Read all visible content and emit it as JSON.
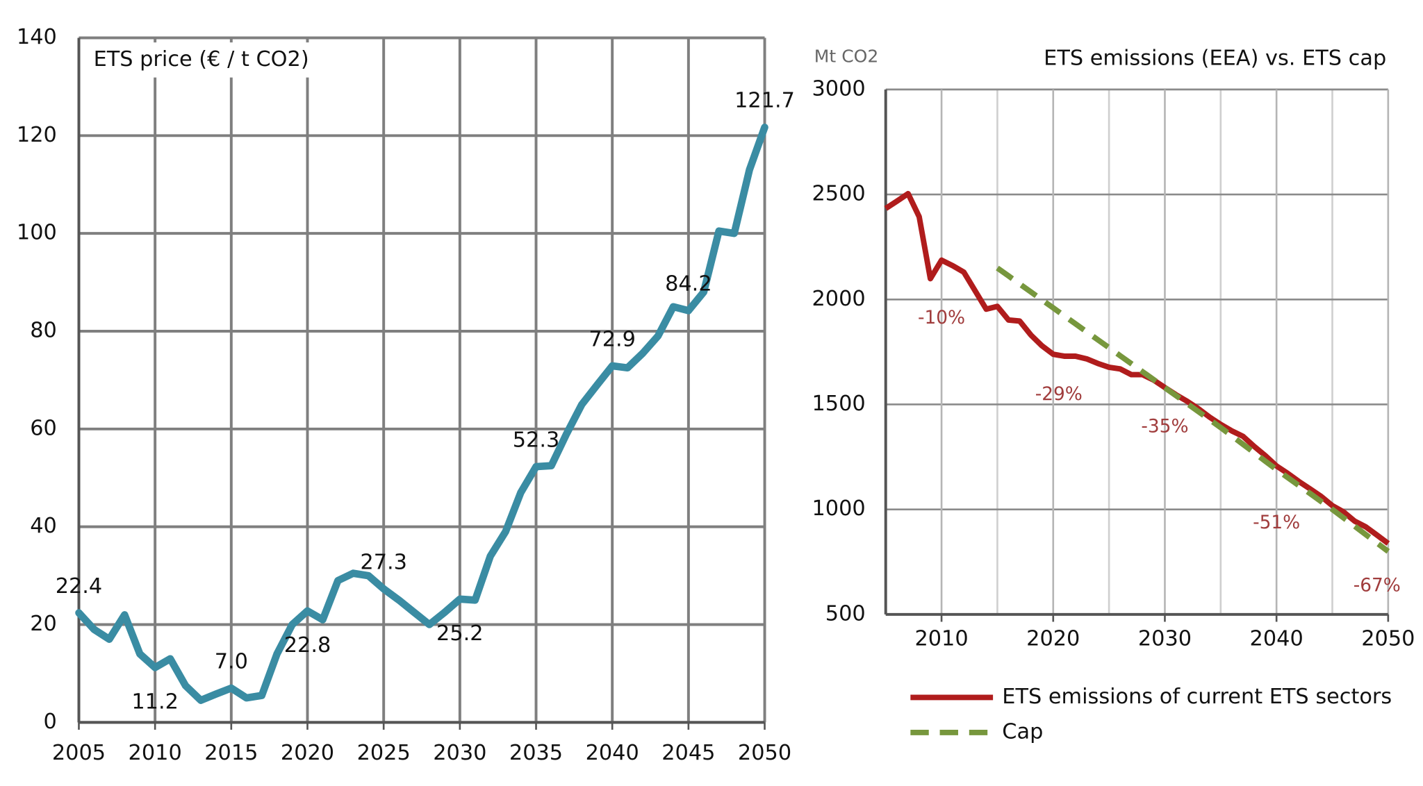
{
  "chart_data": [
    {
      "type": "line",
      "title": "ETS price (€ / t CO2)",
      "x": [
        2005,
        2006,
        2007,
        2008,
        2009,
        2010,
        2011,
        2012,
        2013,
        2014,
        2015,
        2016,
        2017,
        2018,
        2019,
        2020,
        2021,
        2022,
        2023,
        2024,
        2025,
        2026,
        2027,
        2028,
        2029,
        2030,
        2031,
        2032,
        2033,
        2034,
        2035,
        2036,
        2037,
        2038,
        2039,
        2040,
        2041,
        2042,
        2043,
        2044,
        2045,
        2046,
        2047,
        2048,
        2049,
        2050
      ],
      "values": [
        22.4,
        19,
        17,
        22,
        14,
        11.2,
        13,
        7.5,
        4.5,
        5.8,
        7.0,
        5,
        5.5,
        14,
        20,
        22.8,
        21,
        29,
        30.5,
        30,
        27.3,
        25,
        22.5,
        20,
        22.5,
        25.2,
        25,
        34,
        39,
        47,
        52.3,
        52.5,
        59,
        65,
        69,
        72.9,
        72.5,
        75.5,
        79,
        85,
        84.2,
        88,
        100.5,
        100,
        113,
        121.7
      ],
      "value_labels": [
        "22.4",
        null,
        null,
        null,
        null,
        "11.2",
        null,
        null,
        null,
        null,
        "7.0",
        null,
        null,
        null,
        null,
        "22.8",
        null,
        null,
        null,
        null,
        "27.3",
        null,
        null,
        null,
        null,
        "25.2",
        null,
        null,
        null,
        null,
        "52.3",
        null,
        null,
        null,
        null,
        "72.9",
        null,
        null,
        null,
        null,
        "84.2",
        null,
        null,
        null,
        null,
        "121.7"
      ],
      "color": "#3a8ca3",
      "xlim": [
        2005,
        2050
      ],
      "xticks": [
        2005,
        2010,
        2015,
        2020,
        2025,
        2030,
        2035,
        2040,
        2045,
        2050
      ],
      "ylim": [
        0,
        140
      ],
      "yticks": [
        0,
        20,
        40,
        60,
        80,
        100,
        120,
        140
      ],
      "grid": true
    },
    {
      "type": "line",
      "title": "ETS emissions (EEA) vs. ETS cap",
      "y_unit_label": "Mt CO2",
      "x": [
        2005,
        2006,
        2007,
        2008,
        2009,
        2010,
        2011,
        2012,
        2013,
        2014,
        2015,
        2016,
        2017,
        2018,
        2019,
        2020,
        2021,
        2022,
        2023,
        2024,
        2025,
        2026,
        2027,
        2028,
        2029,
        2030,
        2031,
        2032,
        2033,
        2034,
        2035,
        2036,
        2037,
        2038,
        2039,
        2040,
        2041,
        2042,
        2043,
        2044,
        2045,
        2046,
        2047,
        2048,
        2049,
        2050
      ],
      "series": [
        {
          "name": "ETS emissions of current ETS sectors",
          "color": "#b01c1c",
          "style": "solid",
          "values": [
            2433,
            2468,
            2504,
            2394,
            2099,
            2187,
            2161,
            2130,
            2042,
            1954,
            1967,
            1902,
            1897,
            1831,
            1779,
            1739,
            1730,
            1730,
            1717,
            1695,
            1677,
            1669,
            1642,
            1642,
            1616,
            1581,
            1546,
            1515,
            1480,
            1440,
            1405,
            1374,
            1348,
            1300,
            1256,
            1207,
            1172,
            1133,
            1098,
            1062,
            1018,
            988,
            944,
            917,
            878,
            838
          ]
        },
        {
          "name": "Cap",
          "color": "#77973d",
          "style": "dashed",
          "values": [
            null,
            null,
            null,
            null,
            null,
            null,
            null,
            null,
            null,
            null,
            2150,
            2112,
            2074,
            2036,
            1998,
            1960,
            1922,
            1884,
            1846,
            1808,
            1770,
            1732,
            1694,
            1656,
            1618,
            1580,
            1542,
            1504,
            1466,
            1428,
            1390,
            1350,
            1310,
            1270,
            1230,
            1190,
            1152,
            1114,
            1076,
            1038,
            1000,
            960,
            920,
            880,
            840,
            800
          ]
        }
      ],
      "xlim": [
        2005,
        2050
      ],
      "xticks": [
        2010,
        2020,
        2030,
        2040,
        2050
      ],
      "x_minor_grid": [
        2015,
        2025,
        2035,
        2045
      ],
      "ylim": [
        500,
        3000
      ],
      "yticks": [
        500,
        1000,
        1500,
        2000,
        2500,
        3000
      ],
      "grid": true,
      "annotations": [
        {
          "text": "-10%",
          "x": 2010,
          "y": 1910
        },
        {
          "text": "-29%",
          "x": 2020.5,
          "y": 1546
        },
        {
          "text": "-35%",
          "x": 2030,
          "y": 1392
        },
        {
          "text": "-51%",
          "x": 2040,
          "y": 935
        },
        {
          "text": "-67%",
          "x": 2049,
          "y": 636
        }
      ],
      "legend": "bottom"
    }
  ]
}
